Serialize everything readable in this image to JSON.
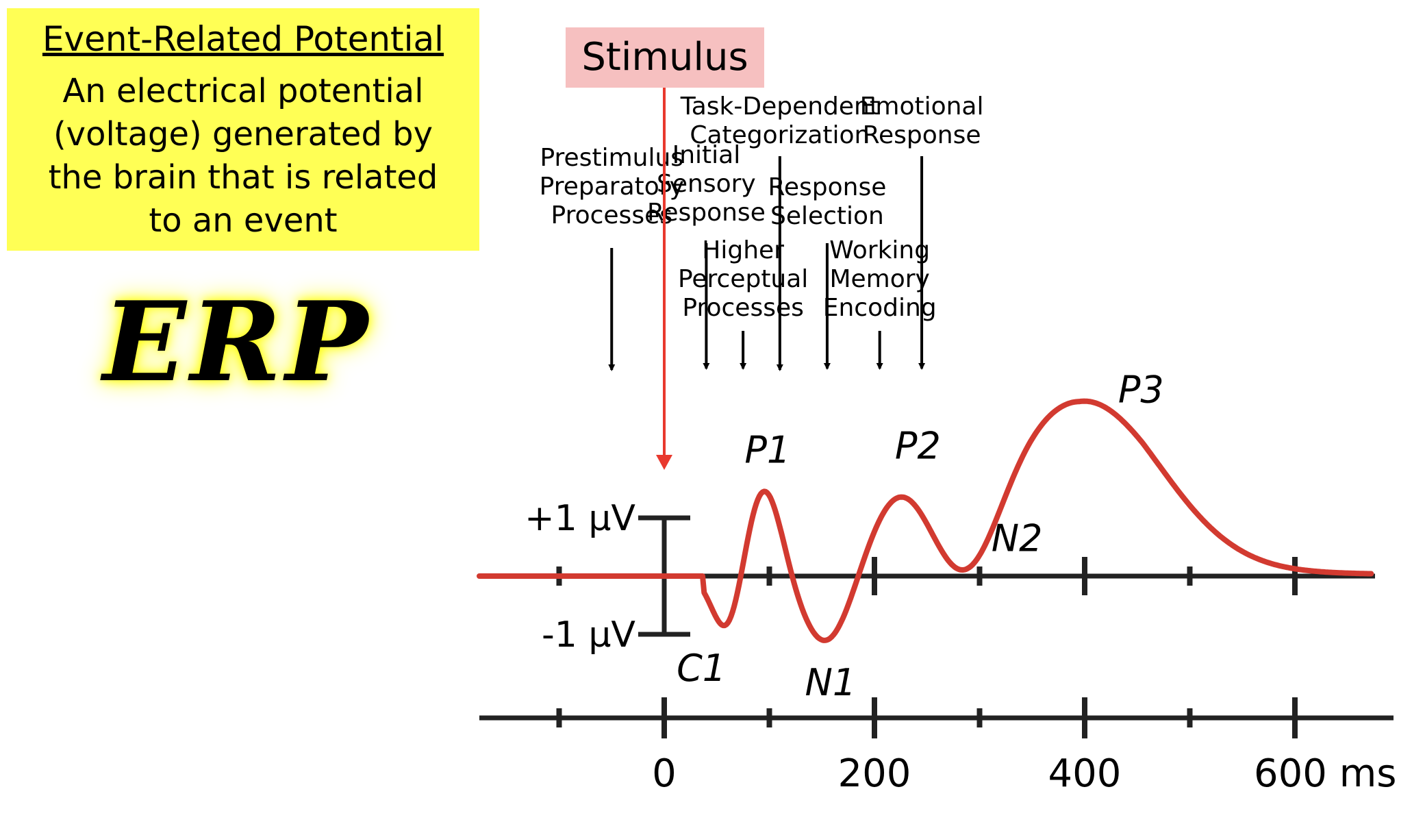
{
  "definition": {
    "title": "Event-Related Potential",
    "text": "An electrical potential (voltage) generated by the brain that is related to an event",
    "background": "#ffff55"
  },
  "logo": {
    "text": "ERP",
    "glow_color": "#ffff00"
  },
  "stimulus": {
    "label": "Stimulus",
    "color": "#e8392e",
    "box_color": "#f6c0c0"
  },
  "processes": [
    {
      "label": "Prestimulus\nPreparatory\nProcesses",
      "time_ms": -50
    },
    {
      "label": "Initial\nSensory\nResponse",
      "time_ms": 40
    },
    {
      "label": "Higher\nPerceptual\nProcesses",
      "time_ms": 75
    },
    {
      "label": "Task-Dependent\nCategorization",
      "time_ms": 110
    },
    {
      "label": "Response\nSelection",
      "time_ms": 155
    },
    {
      "label": "Working\nMemory\nEncoding",
      "time_ms": 205
    },
    {
      "label": "Emotional\nResponse",
      "time_ms": 245
    }
  ],
  "scale_bar": {
    "top_label": "+1 μV",
    "bottom_label": "-1 μV"
  },
  "time_axis": {
    "labels": [
      "0",
      "200",
      "400",
      "600 ms"
    ],
    "major_ticks_ms": [
      0,
      200,
      400,
      600
    ],
    "minor_ticks_ms": [
      -100,
      100,
      300,
      500
    ]
  },
  "components": [
    {
      "name": "C1",
      "latency_ms": 60,
      "amplitude_uv": -1.0
    },
    {
      "name": "P1",
      "latency_ms": 95,
      "amplitude_uv": 1.55
    },
    {
      "name": "N1",
      "latency_ms": 155,
      "amplitude_uv": -1.2
    },
    {
      "name": "P2",
      "latency_ms": 225,
      "amplitude_uv": 1.55
    },
    {
      "name": "N2",
      "latency_ms": 290,
      "amplitude_uv": 0.55
    },
    {
      "name": "P3",
      "latency_ms": 395,
      "amplitude_uv": 3.1
    }
  ],
  "waveform_color": "#d23a30"
}
